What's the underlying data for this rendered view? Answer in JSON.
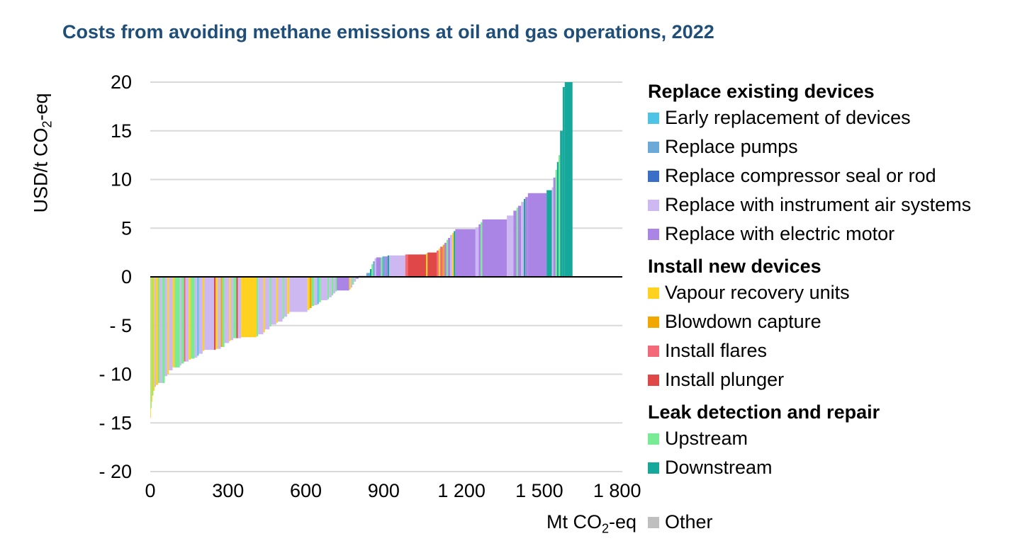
{
  "title": "Costs from avoiding methane emissions at oil and gas operations, 2022",
  "chart_data": {
    "type": "bar",
    "subtype": "marginal-abatement-cost-curve",
    "ylabel_main": "USD/t CO",
    "ylabel_sub": "2",
    "ylabel_tail": "-eq",
    "xlabel_main": "Mt CO",
    "xlabel_sub": "2",
    "xlabel_tail": "-eq",
    "xlim": [
      0,
      1820
    ],
    "ylim": [
      -20,
      20
    ],
    "x_ticks": [
      {
        "value": 0,
        "label": "0"
      },
      {
        "value": 300,
        "label": "300"
      },
      {
        "value": 600,
        "label": "600"
      },
      {
        "value": 900,
        "label": "900"
      },
      {
        "value": 1200,
        "label": "1 200"
      },
      {
        "value": 1500,
        "label": "1 500"
      },
      {
        "value": 1800,
        "label": "1 800"
      }
    ],
    "y_ticks": [
      {
        "value": 20,
        "label": "20"
      },
      {
        "value": 15,
        "label": "15"
      },
      {
        "value": 10,
        "label": "10"
      },
      {
        "value": 5,
        "label": "5"
      },
      {
        "value": 0,
        "label": "0"
      },
      {
        "value": -5,
        "label": "- 5"
      },
      {
        "value": -10,
        "label": "- 10"
      },
      {
        "value": -15,
        "label": "- 15"
      },
      {
        "value": -20,
        "label": "- 20"
      }
    ],
    "grid": true,
    "legend_position": "right",
    "categories": {
      "early": {
        "label": "Early replacement of devices",
        "color": "#4dc3e6"
      },
      "pumps": {
        "label": "Replace pumps",
        "color": "#6aa9d8"
      },
      "compressor": {
        "label": "Replace compressor seal or rod",
        "color": "#3a6fc8"
      },
      "instrument": {
        "label": "Replace with instrument air systems",
        "color": "#cdb8f2"
      },
      "electric": {
        "label": "Replace with electric motor",
        "color": "#ab85e6"
      },
      "vapour": {
        "label": "Vapour recovery units",
        "color": "#ffd21f"
      },
      "blowdown": {
        "label": "Blowdown capture",
        "color": "#f0a800"
      },
      "flares": {
        "label": "Install flares",
        "color": "#f26a78"
      },
      "plunger": {
        "label": "Install plunger",
        "color": "#e04848"
      },
      "upstream": {
        "label": "Upstream",
        "color": "#79eb94"
      },
      "downstream": {
        "label": "Downstream",
        "color": "#16a89a"
      },
      "other": {
        "label": "Other",
        "color": "#bfbfbf"
      }
    },
    "legend_groups": [
      {
        "title": "Replace existing devices",
        "items": [
          "early",
          "pumps",
          "compressor",
          "instrument",
          "electric"
        ]
      },
      {
        "title": "Install new devices",
        "items": [
          "vapour",
          "blowdown",
          "flares",
          "plunger"
        ]
      },
      {
        "title": "Leak detection and repair",
        "items": [
          "upstream",
          "downstream"
        ]
      }
    ],
    "segments": [
      {
        "w": 2,
        "y": -14.5,
        "c": "vapour"
      },
      {
        "w": 3,
        "y": -13.5,
        "c": "upstream"
      },
      {
        "w": 3,
        "y": -12.8,
        "c": "vapour"
      },
      {
        "w": 4,
        "y": -12.2,
        "c": "upstream"
      },
      {
        "w": 5,
        "y": -11.7,
        "c": "vapour"
      },
      {
        "w": 5,
        "y": -11.3,
        "c": "instrument"
      },
      {
        "w": 8,
        "y": -11.1,
        "c": "vapour"
      },
      {
        "w": 6,
        "y": -10.9,
        "c": "upstream"
      },
      {
        "w": 10,
        "y": -10.9,
        "c": "instrument"
      },
      {
        "w": 10,
        "y": -10.9,
        "c": "upstream"
      },
      {
        "w": 10,
        "y": -10.2,
        "c": "instrument"
      },
      {
        "w": 6,
        "y": -10.0,
        "c": "vapour"
      },
      {
        "w": 14,
        "y": -9.6,
        "c": "instrument"
      },
      {
        "w": 8,
        "y": -9.3,
        "c": "vapour"
      },
      {
        "w": 20,
        "y": -9.3,
        "c": "upstream"
      },
      {
        "w": 6,
        "y": -9.1,
        "c": "instrument"
      },
      {
        "w": 10,
        "y": -8.9,
        "c": "upstream"
      },
      {
        "w": 6,
        "y": -8.7,
        "c": "flares"
      },
      {
        "w": 12,
        "y": -8.7,
        "c": "instrument"
      },
      {
        "w": 8,
        "y": -8.5,
        "c": "vapour"
      },
      {
        "w": 15,
        "y": -8.4,
        "c": "upstream"
      },
      {
        "w": 10,
        "y": -8.3,
        "c": "instrument"
      },
      {
        "w": 6,
        "y": -8.1,
        "c": "early"
      },
      {
        "w": 15,
        "y": -7.9,
        "c": "instrument"
      },
      {
        "w": 6,
        "y": -7.6,
        "c": "vapour"
      },
      {
        "w": 38,
        "y": -7.5,
        "c": "instrument"
      },
      {
        "w": 6,
        "y": -7.5,
        "c": "plunger"
      },
      {
        "w": 8,
        "y": -7.4,
        "c": "vapour"
      },
      {
        "w": 12,
        "y": -7.4,
        "c": "instrument"
      },
      {
        "w": 6,
        "y": -7.2,
        "c": "blowdown"
      },
      {
        "w": 8,
        "y": -7.2,
        "c": "upstream"
      },
      {
        "w": 18,
        "y": -6.8,
        "c": "instrument"
      },
      {
        "w": 6,
        "y": -6.6,
        "c": "vapour"
      },
      {
        "w": 10,
        "y": -6.5,
        "c": "instrument"
      },
      {
        "w": 12,
        "y": -6.3,
        "c": "upstream"
      },
      {
        "w": 6,
        "y": -6.3,
        "c": "plunger"
      },
      {
        "w": 12,
        "y": -6.3,
        "c": "instrument"
      },
      {
        "w": 60,
        "y": -6.2,
        "c": "vapour"
      },
      {
        "w": 6,
        "y": -6.1,
        "c": "upstream"
      },
      {
        "w": 20,
        "y": -5.9,
        "c": "instrument"
      },
      {
        "w": 6,
        "y": -5.7,
        "c": "vapour"
      },
      {
        "w": 18,
        "y": -5.4,
        "c": "instrument"
      },
      {
        "w": 6,
        "y": -5.1,
        "c": "upstream"
      },
      {
        "w": 20,
        "y": -4.9,
        "c": "instrument"
      },
      {
        "w": 6,
        "y": -4.7,
        "c": "vapour"
      },
      {
        "w": 18,
        "y": -4.6,
        "c": "instrument"
      },
      {
        "w": 6,
        "y": -4.3,
        "c": "upstream"
      },
      {
        "w": 12,
        "y": -4.1,
        "c": "instrument"
      },
      {
        "w": 8,
        "y": -3.8,
        "c": "vapour"
      },
      {
        "w": 70,
        "y": -3.6,
        "c": "instrument"
      },
      {
        "w": 8,
        "y": -3.4,
        "c": "vapour"
      },
      {
        "w": 8,
        "y": -3.2,
        "c": "blowdown"
      },
      {
        "w": 10,
        "y": -3.0,
        "c": "upstream"
      },
      {
        "w": 12,
        "y": -2.9,
        "c": "instrument"
      },
      {
        "w": 6,
        "y": -2.8,
        "c": "early"
      },
      {
        "w": 8,
        "y": -2.6,
        "c": "upstream"
      },
      {
        "w": 25,
        "y": -2.4,
        "c": "instrument"
      },
      {
        "w": 6,
        "y": -2.3,
        "c": "upstream"
      },
      {
        "w": 10,
        "y": -2.1,
        "c": "instrument"
      },
      {
        "w": 6,
        "y": -1.9,
        "c": "upstream"
      },
      {
        "w": 8,
        "y": -1.7,
        "c": "instrument"
      },
      {
        "w": 6,
        "y": -1.5,
        "c": "upstream"
      },
      {
        "w": 48,
        "y": -1.4,
        "c": "electric"
      },
      {
        "w": 6,
        "y": -1.3,
        "c": "vapour"
      },
      {
        "w": 6,
        "y": -1.1,
        "c": "instrument"
      },
      {
        "w": 6,
        "y": -0.8,
        "c": "upstream"
      },
      {
        "w": 8,
        "y": -0.5,
        "c": "instrument"
      },
      {
        "w": 10,
        "y": -0.2,
        "c": "electric"
      },
      {
        "w": 30,
        "y": 0.1,
        "c": "electric"
      },
      {
        "w": 14,
        "y": 0.4,
        "c": "pumps"
      },
      {
        "w": 6,
        "y": 0.8,
        "c": "downstream"
      },
      {
        "w": 6,
        "y": 1.3,
        "c": "upstream"
      },
      {
        "w": 6,
        "y": 1.6,
        "c": "pumps"
      },
      {
        "w": 6,
        "y": 1.9,
        "c": "instrument"
      },
      {
        "w": 18,
        "y": 2.0,
        "c": "electric"
      },
      {
        "w": 6,
        "y": 2.0,
        "c": "upstream"
      },
      {
        "w": 10,
        "y": 2.1,
        "c": "pumps"
      },
      {
        "w": 10,
        "y": 2.1,
        "c": "electric"
      },
      {
        "w": 6,
        "y": 2.2,
        "c": "downstream"
      },
      {
        "w": 62,
        "y": 2.2,
        "c": "instrument"
      },
      {
        "w": 10,
        "y": 2.3,
        "c": "flares"
      },
      {
        "w": 70,
        "y": 2.3,
        "c": "plunger"
      },
      {
        "w": 6,
        "y": 2.4,
        "c": "vapour"
      },
      {
        "w": 35,
        "y": 2.5,
        "c": "plunger"
      },
      {
        "w": 8,
        "y": 2.7,
        "c": "flares"
      },
      {
        "w": 6,
        "y": 2.9,
        "c": "vapour"
      },
      {
        "w": 10,
        "y": 3.1,
        "c": "flares"
      },
      {
        "w": 6,
        "y": 3.3,
        "c": "blowdown"
      },
      {
        "w": 8,
        "y": 3.5,
        "c": "electric"
      },
      {
        "w": 6,
        "y": 3.8,
        "c": "upstream"
      },
      {
        "w": 8,
        "y": 4.0,
        "c": "electric"
      },
      {
        "w": 8,
        "y": 4.3,
        "c": "instrument"
      },
      {
        "w": 6,
        "y": 4.5,
        "c": "vapour"
      },
      {
        "w": 6,
        "y": 4.7,
        "c": "downstream"
      },
      {
        "w": 78,
        "y": 4.9,
        "c": "electric"
      },
      {
        "w": 12,
        "y": 5.1,
        "c": "instrument"
      },
      {
        "w": 8,
        "y": 5.4,
        "c": "electric"
      },
      {
        "w": 6,
        "y": 5.6,
        "c": "upstream"
      },
      {
        "w": 95,
        "y": 5.9,
        "c": "electric"
      },
      {
        "w": 25,
        "y": 6.3,
        "c": "instrument"
      },
      {
        "w": 12,
        "y": 6.8,
        "c": "electric"
      },
      {
        "w": 6,
        "y": 7.1,
        "c": "upstream"
      },
      {
        "w": 12,
        "y": 7.3,
        "c": "electric"
      },
      {
        "w": 10,
        "y": 7.7,
        "c": "instrument"
      },
      {
        "w": 6,
        "y": 8.0,
        "c": "downstream"
      },
      {
        "w": 10,
        "y": 8.2,
        "c": "electric"
      },
      {
        "w": 72,
        "y": 8.6,
        "c": "electric"
      },
      {
        "w": 20,
        "y": 8.9,
        "c": "downstream"
      },
      {
        "w": 6,
        "y": 9.2,
        "c": "instrument"
      },
      {
        "w": 8,
        "y": 10.2,
        "c": "electric"
      },
      {
        "w": 6,
        "y": 11.0,
        "c": "upstream"
      },
      {
        "w": 6,
        "y": 11.8,
        "c": "downstream"
      },
      {
        "w": 6,
        "y": 12.5,
        "c": "upstream"
      },
      {
        "w": 10,
        "y": 15.0,
        "c": "downstream"
      },
      {
        "w": 8,
        "y": 19.5,
        "c": "downstream"
      },
      {
        "w": 30,
        "y": 20.0,
        "c": "downstream"
      }
    ]
  }
}
